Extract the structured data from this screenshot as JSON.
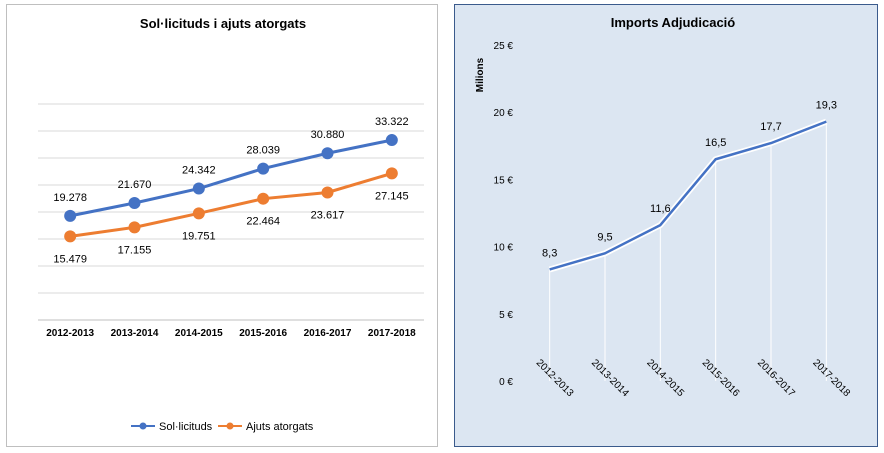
{
  "chart_data": [
    {
      "type": "line",
      "title": "Sol·licituds i ajuts atorgats",
      "categories": [
        "2012-2013",
        "2013-2014",
        "2014-2015",
        "2015-2016",
        "2016-2017",
        "2017-2018"
      ],
      "series": [
        {
          "name": "Sol·licituds",
          "values": [
            19278,
            21670,
            24342,
            28039,
            30880,
            33322
          ],
          "labels": [
            "19.278",
            "21.670",
            "24.342",
            "28.039",
            "30.880",
            "33.322"
          ],
          "color": "#4472c4"
        },
        {
          "name": "Ajuts atorgats",
          "values": [
            15479,
            17155,
            19751,
            22464,
            23617,
            27145
          ],
          "labels": [
            "15.479",
            "17.155",
            "19.751",
            "22.464",
            "23.617",
            "27.145"
          ],
          "color": "#ed7d31"
        }
      ],
      "ylim": [
        0,
        40000
      ],
      "grid": true,
      "legend": "bottom"
    },
    {
      "type": "line",
      "title": "Imports Adjudicació",
      "ylabel": "Milions",
      "categories": [
        "2012-2013",
        "2013-2014",
        "2014-2015",
        "2015-2016",
        "2016-2017",
        "2017-2018"
      ],
      "series": [
        {
          "values": [
            8.3,
            9.5,
            11.6,
            16.5,
            17.7,
            19.3
          ],
          "labels": [
            "8,3",
            "9,5",
            "11,6",
            "16,5",
            "17,7",
            "19,3"
          ],
          "color": "#4472c4"
        }
      ],
      "yticks": [
        "0 €",
        "5 €",
        "10 €",
        "15 €",
        "20 €",
        "25 €"
      ],
      "ylim": [
        0,
        25
      ],
      "grid": false
    }
  ]
}
